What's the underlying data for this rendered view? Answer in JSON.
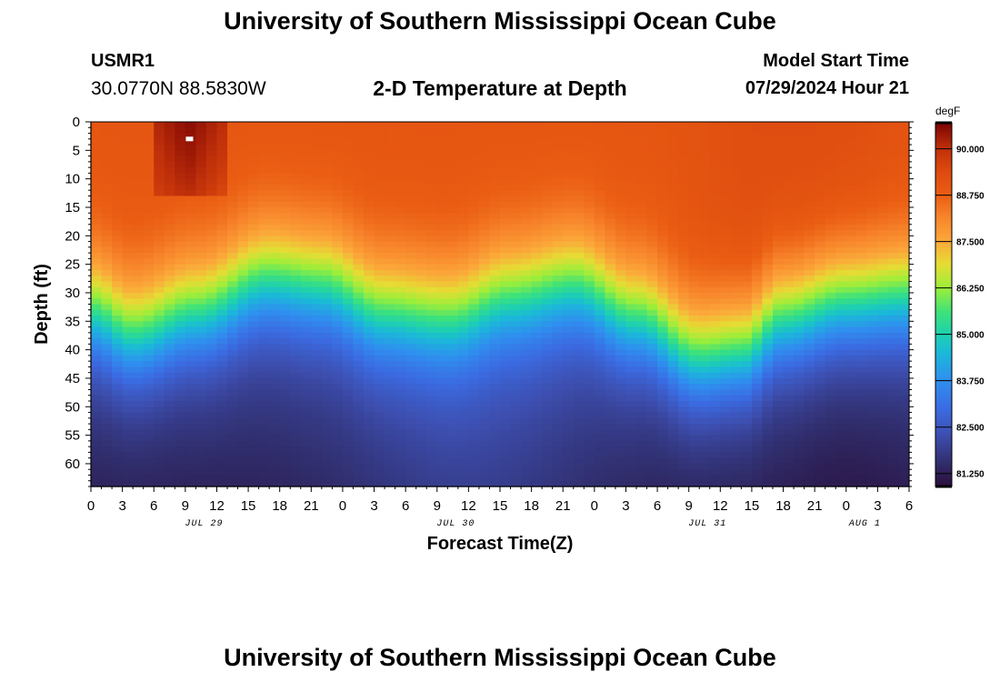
{
  "header": {
    "title": "University of Southern Mississippi Ocean Cube",
    "station_id": "USMR1",
    "station_location": "30.0770N  88.5830W",
    "subtitle": "2-D Temperature at Depth",
    "model_start_label": "Model Start Time",
    "model_start_value": "07/29/2024 Hour 21"
  },
  "footer": {
    "title": "University of Southern Mississippi Ocean Cube"
  },
  "chart_data": {
    "type": "heatmap",
    "title": "2-D Temperature at Depth",
    "xlabel": "Forecast Time(Z)",
    "ylabel": "Depth (ft)",
    "xlim": [
      0,
      78
    ],
    "ylim": [
      0,
      64
    ],
    "x_ticks": [
      {
        "hour": 0,
        "label": "0"
      },
      {
        "hour": 3,
        "label": "3"
      },
      {
        "hour": 6,
        "label": "6"
      },
      {
        "hour": 9,
        "label": "9"
      },
      {
        "hour": 12,
        "label": "12"
      },
      {
        "hour": 15,
        "label": "15"
      },
      {
        "hour": 18,
        "label": "18"
      },
      {
        "hour": 21,
        "label": "21"
      },
      {
        "hour": 24,
        "label": "0"
      },
      {
        "hour": 27,
        "label": "3"
      },
      {
        "hour": 30,
        "label": "6"
      },
      {
        "hour": 33,
        "label": "9"
      },
      {
        "hour": 36,
        "label": "12"
      },
      {
        "hour": 39,
        "label": "15"
      },
      {
        "hour": 42,
        "label": "18"
      },
      {
        "hour": 45,
        "label": "21"
      },
      {
        "hour": 48,
        "label": "0"
      },
      {
        "hour": 51,
        "label": "3"
      },
      {
        "hour": 54,
        "label": "6"
      },
      {
        "hour": 57,
        "label": "9"
      },
      {
        "hour": 60,
        "label": "12"
      },
      {
        "hour": 63,
        "label": "15"
      },
      {
        "hour": 66,
        "label": "18"
      },
      {
        "hour": 69,
        "label": "21"
      },
      {
        "hour": 72,
        "label": "0"
      },
      {
        "hour": 75,
        "label": "3"
      },
      {
        "hour": 78,
        "label": "6"
      }
    ],
    "date_labels": [
      {
        "hour": 12,
        "label": "JUL 29"
      },
      {
        "hour": 36,
        "label": "JUL 30"
      },
      {
        "hour": 60,
        "label": "JUL 31"
      },
      {
        "hour": 75,
        "label": "AUG 1"
      }
    ],
    "y_ticks": [
      0,
      5,
      10,
      15,
      20,
      25,
      30,
      35,
      40,
      45,
      50,
      55,
      60
    ],
    "colorbar": {
      "units": "degF",
      "min": 80.9,
      "max": 90.7,
      "tick_values": [
        90.0,
        88.75,
        87.5,
        86.25,
        85.0,
        83.75,
        82.5,
        81.25
      ],
      "tick_labels": [
        "90.000",
        "88.750",
        "87.500",
        "86.250",
        "85.000",
        "83.750",
        "82.500",
        "81.250"
      ],
      "stops": [
        {
          "value": 80.9,
          "color": "#2a0e3a"
        },
        {
          "value": 81.5,
          "color": "#302c6a"
        },
        {
          "value": 82.3,
          "color": "#3d4fb0"
        },
        {
          "value": 83.0,
          "color": "#3b6be2"
        },
        {
          "value": 83.75,
          "color": "#2f8fef"
        },
        {
          "value": 84.5,
          "color": "#1bb8d9"
        },
        {
          "value": 85.0,
          "color": "#1ed0b0"
        },
        {
          "value": 85.6,
          "color": "#3ee27a"
        },
        {
          "value": 86.25,
          "color": "#9cee3a"
        },
        {
          "value": 86.9,
          "color": "#e6dc34"
        },
        {
          "value": 87.5,
          "color": "#fba93a"
        },
        {
          "value": 88.2,
          "color": "#f7822a"
        },
        {
          "value": 88.75,
          "color": "#ea5d13"
        },
        {
          "value": 89.4,
          "color": "#dd4a0f"
        },
        {
          "value": 90.0,
          "color": "#c0300a"
        },
        {
          "value": 90.7,
          "color": "#7a0303"
        }
      ]
    },
    "thermocline_depth_ft": [
      {
        "hour": 0,
        "depth": 33
      },
      {
        "hour": 4,
        "depth": 37
      },
      {
        "hour": 10,
        "depth": 33
      },
      {
        "hour": 17,
        "depth": 27
      },
      {
        "hour": 22,
        "depth": 28
      },
      {
        "hour": 28,
        "depth": 33
      },
      {
        "hour": 34,
        "depth": 34
      },
      {
        "hour": 40,
        "depth": 30
      },
      {
        "hour": 46,
        "depth": 28
      },
      {
        "hour": 52,
        "depth": 34
      },
      {
        "hour": 58,
        "depth": 41
      },
      {
        "hour": 62,
        "depth": 40
      },
      {
        "hour": 66,
        "depth": 34
      },
      {
        "hour": 72,
        "depth": 31
      },
      {
        "hour": 78,
        "depth": 30
      }
    ],
    "surface_warm_core": {
      "hour_start": 6,
      "hour_end": 12.5,
      "depth_end_ft": 13,
      "value_degF": 90.6
    },
    "masked_cell": {
      "hour": 9.4,
      "depth_ft": 3
    }
  }
}
